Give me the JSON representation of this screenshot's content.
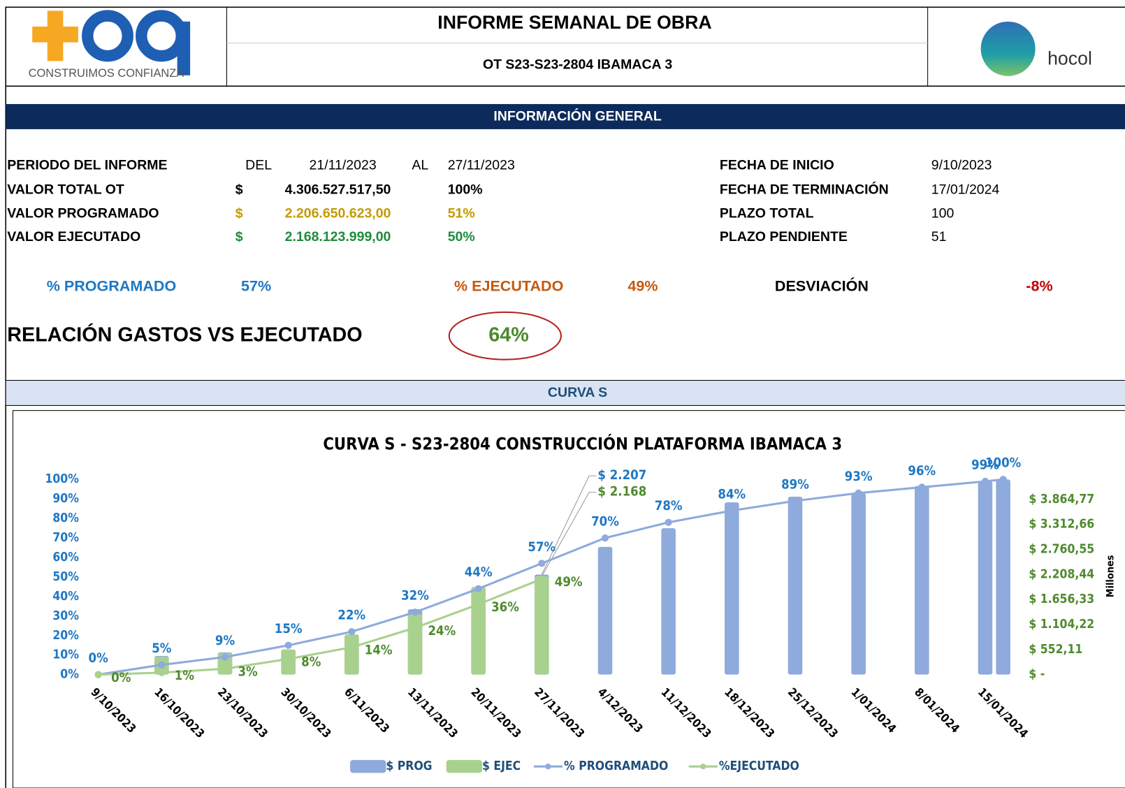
{
  "header": {
    "logo_text": "CONSTRUIMOS CONFIANZA",
    "title": "INFORME SEMANAL DE OBRA",
    "subtitle": "OT S23-S23-2804 IBAMACA 3",
    "client_logo": "hocol"
  },
  "general": {
    "title": "INFORMACIÓN GENERAL",
    "period": {
      "label": "PERIODO DEL INFORME",
      "from_word": "DEL",
      "from": "21/11/2023",
      "to_word": "AL",
      "to": "27/11/2023"
    },
    "amounts": [
      {
        "label": "VALOR TOTAL OT",
        "currency": "$",
        "amount": "4.306.527.517,50",
        "percent": "100%"
      },
      {
        "label": "VALOR PROGRAMADO",
        "currency": "$",
        "amount": "2.206.650.623,00",
        "percent": "51%"
      },
      {
        "label": "VALOR EJECUTADO",
        "currency": "$",
        "amount": "2.168.123.999,00",
        "percent": "50%"
      }
    ],
    "dates": [
      {
        "label": "FECHA DE INICIO",
        "value": "9/10/2023"
      },
      {
        "label": "FECHA DE TERMINACIÓN",
        "value": "17/01/2024"
      },
      {
        "label": "PLAZO TOTAL",
        "value": "100"
      },
      {
        "label": "PLAZO PENDIENTE",
        "value": "51"
      }
    ]
  },
  "indicators": [
    {
      "label": "% PROGRAMADO",
      "value": "57%"
    },
    {
      "label": "% EJECUTADO",
      "value": "49%"
    },
    {
      "label": "DESVIACIÓN",
      "value": "-8%"
    }
  ],
  "ratio": {
    "label": "RELACIÓN GASTOS VS EJECUTADO",
    "value": "64%"
  },
  "curve_section": "CURVA S",
  "chart_data": {
    "type": "combo",
    "title": "CURVA S - S23-2804  CONSTRUCCIÓN  PLATAFORMA IBAMACA 3",
    "categories": [
      "9/10/2023",
      "16/10/2023",
      "23/10/2023",
      "30/10/2023",
      "6/11/2023",
      "13/11/2023",
      "20/11/2023",
      "27/11/2023",
      "4/12/2023",
      "11/12/2023",
      "18/12/2023",
      "25/12/2023",
      "1/01/2024",
      "8/01/2024",
      "15/01/2024",
      null
    ],
    "series": [
      {
        "name": "$ PROG",
        "type": "bar",
        "axis": "y2",
        "color": "#8faadc",
        "label_color": "#1f77c4",
        "values": [
          0,
          412,
          491,
          554,
          871,
          1441,
          1931,
          2207,
          2818,
          3229,
          3799,
          3926,
          4005,
          4163,
          4263,
          4306
        ],
        "value_labels": [
          null,
          null,
          null,
          null,
          null,
          null,
          null,
          "$ 2.207",
          null,
          null,
          null,
          null,
          null,
          null,
          null,
          null
        ]
      },
      {
        "name": "$ EJEC",
        "type": "bar",
        "axis": "y2",
        "color": "#a9d18e",
        "label_color": "#4e8a2e",
        "values": [
          0,
          396,
          475,
          554,
          887,
          1330,
          1931,
          2168,
          null,
          null,
          null,
          null,
          null,
          null,
          null,
          null
        ],
        "value_labels": [
          null,
          null,
          null,
          null,
          null,
          null,
          null,
          "$ 2.168",
          null,
          null,
          null,
          null,
          null,
          null,
          null,
          null
        ]
      },
      {
        "name": "% PROGRAMADO",
        "type": "line",
        "color": "#8faadc",
        "label_color": "#1f77c4",
        "values": [
          0,
          5,
          9,
          15,
          22,
          32,
          44,
          57,
          70,
          78,
          84,
          89,
          93,
          96,
          99,
          100
        ],
        "value_labels": [
          "0%",
          "5%",
          "9%",
          "15%",
          "22%",
          "32%",
          "44%",
          "57%",
          "70%",
          "78%",
          "84%",
          "89%",
          "93%",
          "96%",
          "99%",
          "100%"
        ]
      },
      {
        "name": "%EJECUTADO",
        "type": "line",
        "color": "#a9d18e",
        "label_color": "#4e8a2e",
        "values": [
          0,
          1,
          3,
          8,
          14,
          24,
          36,
          49,
          null,
          null,
          null,
          null,
          null,
          null,
          null,
          null
        ],
        "value_labels": [
          "0%",
          "1%",
          "3%",
          "8%",
          "14%",
          "24%",
          "36%",
          "49%",
          null,
          null,
          null,
          null,
          null,
          null,
          null,
          null
        ]
      }
    ],
    "ylim": [
      0,
      100
    ],
    "yticks": [
      {
        "value": 0,
        "label": "0%"
      },
      {
        "value": 10,
        "label": "10%"
      },
      {
        "value": 20,
        "label": "20%"
      },
      {
        "value": 30,
        "label": "30%"
      },
      {
        "value": 40,
        "label": "40%"
      },
      {
        "value": 50,
        "label": "50%"
      },
      {
        "value": 60,
        "label": "60%"
      },
      {
        "value": 70,
        "label": "70%"
      },
      {
        "value": 80,
        "label": "80%"
      },
      {
        "value": 90,
        "label": "90%"
      },
      {
        "value": 100,
        "label": "100%"
      }
    ],
    "y2lim": [
      0,
      4306.53
    ],
    "y2ticks": [
      {
        "value": 0,
        "label": "$ -"
      },
      {
        "value": 552.11,
        "label": "$ 552,11"
      },
      {
        "value": 1104.22,
        "label": "$ 1.104,22"
      },
      {
        "value": 1656.33,
        "label": "$ 1.656,33"
      },
      {
        "value": 2208.44,
        "label": "$ 2.208,44"
      },
      {
        "value": 2760.55,
        "label": "$ 2.760,55"
      },
      {
        "value": 3312.66,
        "label": "$ 3.312,66"
      },
      {
        "value": 3864.77,
        "label": "$ 3.864,77"
      }
    ],
    "y2label": "Millones",
    "legend": "bottom"
  }
}
